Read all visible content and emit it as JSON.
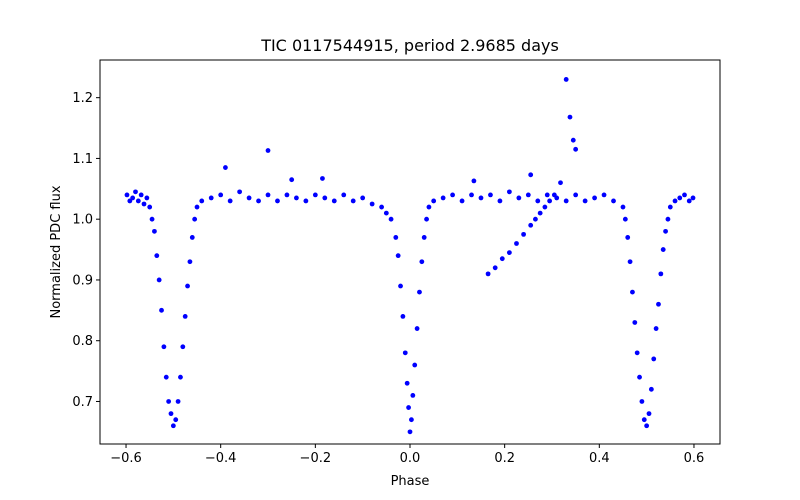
{
  "chart_data": {
    "type": "scatter",
    "title": "TIC 0117544915, period 2.9685 days",
    "xlabel": "Phase",
    "ylabel": "Normalized PDC flux",
    "xlim": [
      -0.655,
      0.655
    ],
    "ylim": [
      0.63,
      1.262
    ],
    "grid": false,
    "xticks": [
      -0.6,
      -0.4,
      -0.2,
      0.0,
      0.2,
      0.4,
      0.6
    ],
    "xtick_labels": [
      "−0.6",
      "−0.4",
      "−0.2",
      "0.0",
      "0.2",
      "0.4",
      "0.6"
    ],
    "yticks": [
      0.7,
      0.8,
      0.9,
      1.0,
      1.1,
      1.2
    ],
    "ytick_labels": [
      "0.7",
      "0.8",
      "0.9",
      "1.0",
      "1.1",
      "1.2"
    ],
    "marker_color": "#0000ff",
    "series": [
      {
        "name": "PDC flux",
        "x": [
          -0.598,
          -0.592,
          -0.586,
          -0.58,
          -0.574,
          -0.568,
          -0.562,
          -0.556,
          -0.55,
          -0.545,
          -0.54,
          -0.535,
          -0.53,
          -0.525,
          -0.52,
          -0.515,
          -0.51,
          -0.505,
          -0.5,
          -0.495,
          -0.49,
          -0.485,
          -0.48,
          -0.475,
          -0.47,
          -0.465,
          -0.46,
          -0.455,
          -0.45,
          -0.44,
          -0.42,
          -0.4,
          -0.38,
          -0.36,
          -0.34,
          -0.32,
          -0.3,
          -0.28,
          -0.26,
          -0.24,
          -0.22,
          -0.2,
          -0.18,
          -0.16,
          -0.14,
          -0.12,
          -0.1,
          -0.08,
          -0.06,
          -0.05,
          -0.04,
          -0.03,
          -0.025,
          -0.02,
          -0.015,
          -0.01,
          -0.006,
          -0.003,
          0.0,
          0.003,
          0.006,
          0.01,
          0.015,
          0.02,
          0.025,
          0.03,
          0.035,
          0.04,
          0.05,
          0.07,
          0.09,
          0.11,
          0.13,
          0.15,
          0.17,
          0.19,
          0.21,
          0.23,
          0.25,
          0.27,
          0.29,
          0.31,
          0.33,
          0.35,
          0.37,
          0.39,
          0.41,
          0.43,
          0.45,
          0.455,
          0.46,
          0.465,
          0.47,
          0.475,
          0.48,
          0.485,
          0.49,
          0.495,
          0.5,
          0.505,
          0.51,
          0.515,
          0.52,
          0.525,
          0.53,
          0.535,
          0.54,
          0.545,
          0.55,
          0.56,
          0.57,
          0.58,
          0.59,
          0.598,
          -0.39,
          -0.3,
          -0.25,
          -0.185,
          0.135,
          0.255,
          0.165,
          0.18,
          0.195,
          0.21,
          0.225,
          0.24,
          0.255,
          0.265,
          0.275,
          0.285,
          0.295,
          0.305,
          0.318,
          0.33,
          0.338,
          0.345,
          0.35
        ],
        "y": [
          1.04,
          1.03,
          1.035,
          1.045,
          1.03,
          1.04,
          1.025,
          1.035,
          1.02,
          1.0,
          0.98,
          0.94,
          0.9,
          0.85,
          0.79,
          0.74,
          0.7,
          0.68,
          0.66,
          0.67,
          0.7,
          0.74,
          0.79,
          0.84,
          0.89,
          0.93,
          0.97,
          1.0,
          1.02,
          1.03,
          1.035,
          1.04,
          1.03,
          1.045,
          1.035,
          1.03,
          1.04,
          1.03,
          1.04,
          1.035,
          1.03,
          1.04,
          1.035,
          1.03,
          1.04,
          1.03,
          1.035,
          1.025,
          1.02,
          1.01,
          1.0,
          0.97,
          0.94,
          0.89,
          0.84,
          0.78,
          0.73,
          0.69,
          0.65,
          0.67,
          0.71,
          0.76,
          0.82,
          0.88,
          0.93,
          0.97,
          1.0,
          1.02,
          1.03,
          1.035,
          1.04,
          1.03,
          1.04,
          1.035,
          1.04,
          1.03,
          1.045,
          1.035,
          1.04,
          1.03,
          1.04,
          1.035,
          1.03,
          1.04,
          1.03,
          1.035,
          1.04,
          1.03,
          1.02,
          1.0,
          0.97,
          0.93,
          0.88,
          0.83,
          0.78,
          0.74,
          0.7,
          0.67,
          0.66,
          0.68,
          0.72,
          0.77,
          0.82,
          0.86,
          0.91,
          0.95,
          0.98,
          1.0,
          1.02,
          1.03,
          1.035,
          1.04,
          1.03,
          1.035,
          1.085,
          1.113,
          1.065,
          1.067,
          1.063,
          1.073,
          0.91,
          0.92,
          0.935,
          0.945,
          0.96,
          0.975,
          0.99,
          1.0,
          1.01,
          1.02,
          1.03,
          1.04,
          1.06,
          1.23,
          1.168,
          1.13,
          1.115
        ]
      }
    ]
  }
}
